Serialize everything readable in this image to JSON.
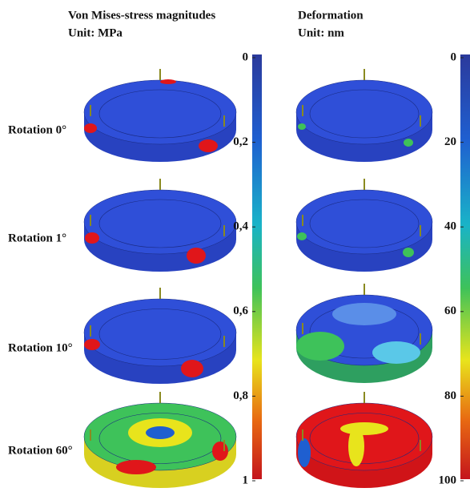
{
  "columns": [
    {
      "title": "Von Mises-stress magnitudes",
      "unit": "Unit: MPa",
      "colorbar": {
        "lim": [
          0,
          1
        ],
        "ticks": [
          0,
          {
            "value": 0.2,
            "label": "0,2"
          },
          {
            "value": 0.4,
            "label": "0,4"
          },
          {
            "value": 0.6,
            "label": "0,6"
          },
          {
            "value": 0.8,
            "label": "0,8"
          },
          1
        ]
      }
    },
    {
      "title": "Deformation",
      "unit": "Unit: nm",
      "colorbar": {
        "lim": [
          0,
          100
        ],
        "ticks": [
          0,
          20,
          40,
          60,
          80,
          100
        ]
      }
    }
  ],
  "rows": [
    "Rotation  0°",
    "Rotation  1°",
    "Rotation 10°",
    "Rotation 60°"
  ]
}
